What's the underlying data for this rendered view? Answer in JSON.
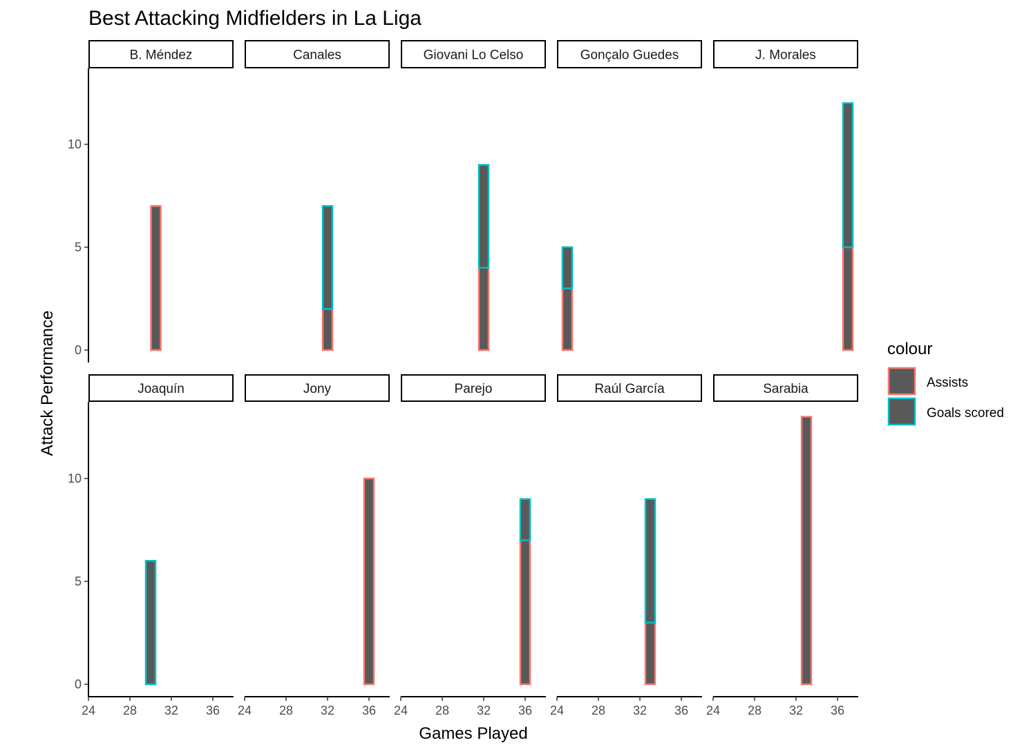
{
  "chart_data": {
    "type": "bar",
    "title": "Best Attacking Midfielders in La Liga",
    "xlabel": "Games Played",
    "ylabel": "Attack Performance",
    "xlim": [
      24,
      38
    ],
    "ylim": [
      0,
      13.6
    ],
    "x_ticks": [
      24,
      28,
      32,
      36
    ],
    "y_ticks": [
      0,
      5,
      10
    ],
    "grid": false,
    "legend": {
      "title": "colour",
      "position": "right",
      "entries": [
        {
          "label": "Assists",
          "color": "#F8766D"
        },
        {
          "label": "Goals scored",
          "color": "#00BFC4"
        }
      ]
    },
    "bar_fill": "#595959",
    "facets": [
      {
        "name": "B. Méndez",
        "games": 30.5,
        "assists": 7,
        "goals": 0
      },
      {
        "name": "Canales",
        "games": 32,
        "assists": 2,
        "goals": 5
      },
      {
        "name": "Giovani Lo Celso",
        "games": 32,
        "assists": 4,
        "goals": 5
      },
      {
        "name": "Gonçalo Guedes",
        "games": 25,
        "assists": 3,
        "goals": 2
      },
      {
        "name": "J. Morales",
        "games": 37,
        "assists": 5,
        "goals": 7
      },
      {
        "name": "Joaquín",
        "games": 30,
        "assists": 0,
        "goals": 6
      },
      {
        "name": "Jony",
        "games": 36,
        "assists": 10,
        "goals": 0
      },
      {
        "name": "Parejo",
        "games": 36,
        "assists": 7,
        "goals": 2
      },
      {
        "name": "Raúl García",
        "games": 33,
        "assists": 3,
        "goals": 6
      },
      {
        "name": "Sarabia",
        "games": 33,
        "assists": 13,
        "goals": 0
      }
    ]
  }
}
